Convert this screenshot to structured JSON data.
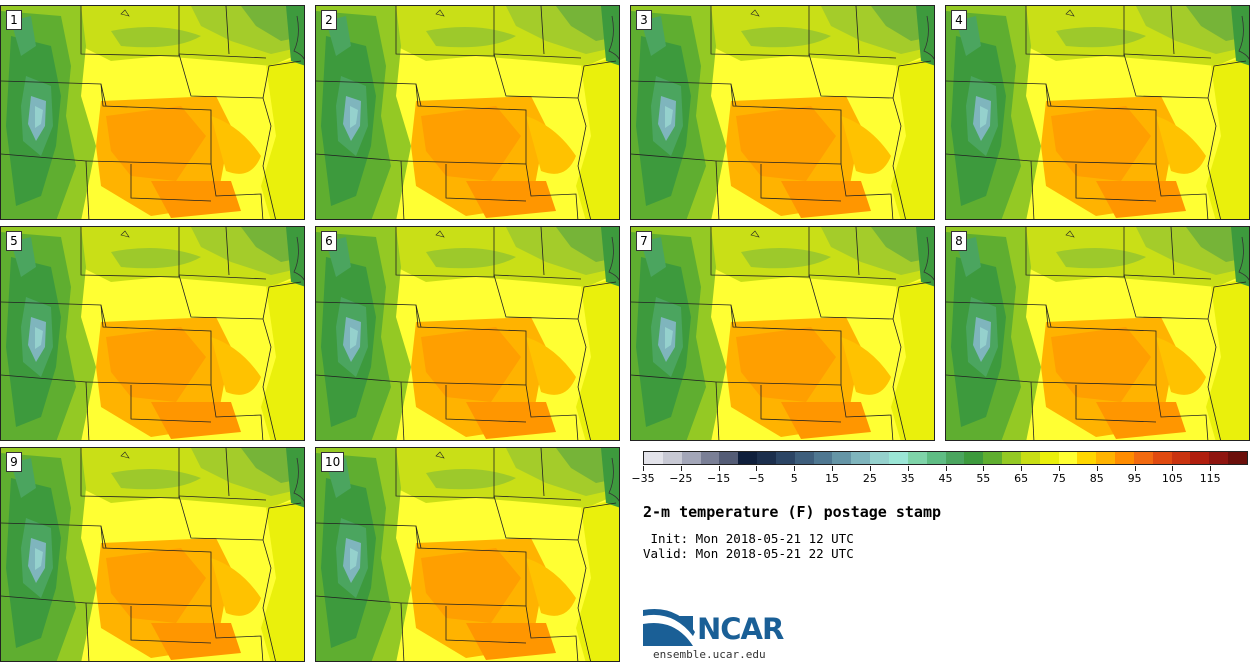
{
  "members": [
    "1",
    "2",
    "3",
    "4",
    "5",
    "6",
    "7",
    "8",
    "9",
    "10"
  ],
  "colorbar": {
    "colors": [
      "#e3e3ea",
      "#c8c9d4",
      "#a3a6b8",
      "#7a7f96",
      "#545c76",
      "#0f1f3c",
      "#1c2f4d",
      "#2c4565",
      "#3e5e7c",
      "#4f7791",
      "#6595a6",
      "#7fb5bd",
      "#95d1cd",
      "#9be6d6",
      "#7fd4a9",
      "#5fbd84",
      "#4ba55f",
      "#3d9a3d",
      "#5fae30",
      "#94c924",
      "#c7de16",
      "#eaf00c",
      "#ffff33",
      "#ffd700",
      "#ffb300",
      "#ff8c00",
      "#f26a10",
      "#e04a10",
      "#c9330f",
      "#b01e0e",
      "#8f1510",
      "#6b0f0b"
    ],
    "ticks": [
      "−35",
      "−25",
      "−15",
      "−5",
      "5",
      "15",
      "25",
      "35",
      "45",
      "55",
      "65",
      "75",
      "85",
      "95",
      "105",
      "115"
    ]
  },
  "title": "2-m temperature (F) postage stamp",
  "init": " Init: Mon 2018-05-21 12 UTC",
  "valid": "Valid: Mon 2018-05-21 22 UTC",
  "logo": {
    "text": "NCAR"
  },
  "url": "ensemble.ucar.edu"
}
